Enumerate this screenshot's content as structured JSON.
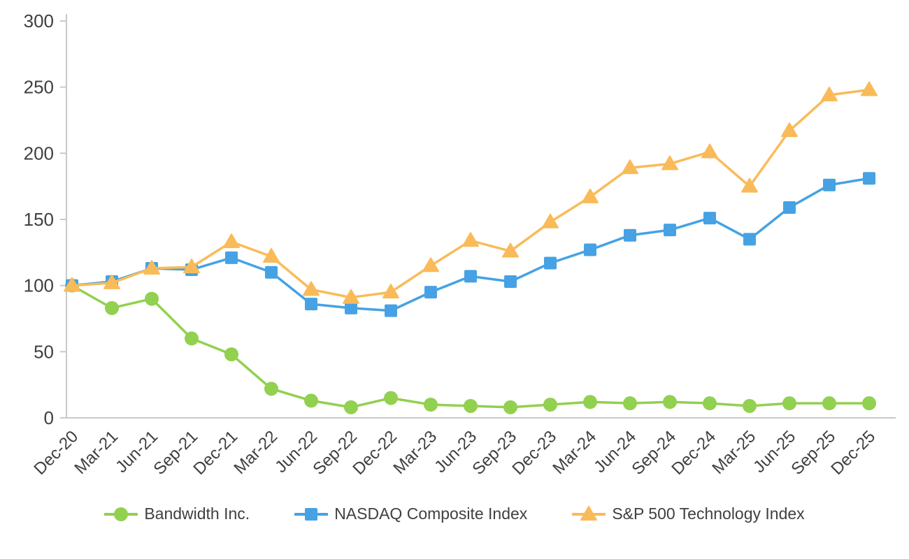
{
  "chart_data": {
    "type": "line",
    "title": "",
    "xlabel": "",
    "ylabel": "",
    "grid": false,
    "legend_position": "bottom",
    "axis_color": "#c9c9c9",
    "text_color": "#404040",
    "ylim": [
      0,
      300
    ],
    "yticks": [
      0,
      50,
      100,
      150,
      200,
      250,
      300
    ],
    "categories": [
      "Dec-20",
      "Mar-21",
      "Jun-21",
      "Sep-21",
      "Dec-21",
      "Mar-22",
      "Jun-22",
      "Sep-22",
      "Dec-22",
      "Mar-23",
      "Jun-23",
      "Sep-23",
      "Dec-23",
      "Mar-24",
      "Jun-24",
      "Sep-24",
      "Dec-24",
      "Mar-25",
      "Jun-25",
      "Sep-25",
      "Dec-25"
    ],
    "series": [
      {
        "name": "Bandwidth Inc.",
        "marker": "circle",
        "color": "#92d050",
        "values": [
          100,
          83,
          90,
          60,
          48,
          22,
          13,
          8,
          15,
          10,
          9,
          8,
          10,
          12,
          11,
          12,
          11,
          9,
          11,
          11,
          11
        ]
      },
      {
        "name": "NASDAQ Composite Index",
        "marker": "square",
        "color": "#46a2e4",
        "values": [
          100,
          103,
          113,
          112,
          121,
          110,
          86,
          83,
          81,
          95,
          107,
          103,
          117,
          127,
          138,
          142,
          151,
          135,
          159,
          176,
          181
        ]
      },
      {
        "name": "S&P 500 Technology Index",
        "marker": "triangle",
        "color": "#f9bb59",
        "values": [
          100,
          102,
          113,
          114,
          133,
          122,
          97,
          91,
          95,
          115,
          134,
          126,
          148,
          167,
          189,
          192,
          201,
          175,
          217,
          244,
          248
        ]
      }
    ]
  }
}
